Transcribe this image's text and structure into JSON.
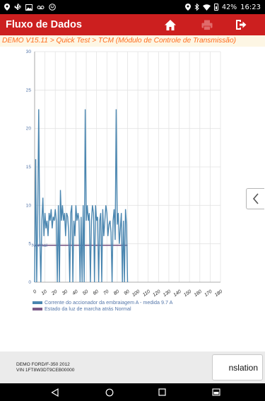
{
  "status_bar": {
    "battery": "42%",
    "time": "16:23"
  },
  "header": {
    "title": "Fluxo de Dados",
    "home_icon": "home-icon",
    "print_icon": "print-icon",
    "exit_icon": "exit-icon"
  },
  "breadcrumb": "DEMO V15.11 > Quick Test > TCM (Módulo de Controle de Transmissão)",
  "colors": {
    "header": "#cc1f1f",
    "breadcrumb_text": "#ff6a1a",
    "series_1": "#4a86b0",
    "series_2": "#7a5a86"
  },
  "chart_data": {
    "type": "line",
    "xlim": [
      0,
      180
    ],
    "ylim": [
      0,
      30
    ],
    "x_ticks": [
      "0",
      "10",
      "20",
      "30",
      "40",
      "50",
      "60",
      "70",
      "80",
      "90",
      "100",
      "110",
      "120",
      "130",
      "140",
      "150",
      "160",
      "170",
      "180"
    ],
    "y_ticks": [
      "0",
      "5",
      "10",
      "15",
      "20",
      "25",
      "30"
    ],
    "grid": true,
    "legend_position": "bottom-left",
    "annotation": "Normal",
    "series": [
      {
        "name": "Corrente do accionador da embraiagem A - medida 9.7 A",
        "x": [
          0,
          1,
          2,
          3,
          4,
          5,
          6,
          7,
          8,
          9,
          10,
          11,
          12,
          13,
          14,
          15,
          16,
          17,
          18,
          19,
          20,
          21,
          22,
          23,
          24,
          25,
          26,
          27,
          28,
          29,
          30,
          31,
          32,
          33,
          34,
          35,
          36,
          37,
          38,
          39,
          40,
          41,
          42,
          43,
          44,
          45,
          46,
          47,
          48,
          49,
          50,
          51,
          52,
          53,
          54,
          55,
          56,
          57,
          58,
          59,
          60,
          61,
          62,
          63,
          64,
          65,
          66,
          67,
          68,
          69,
          70,
          71,
          72,
          73,
          74,
          75,
          76,
          77,
          78,
          79,
          80,
          81,
          82,
          83,
          84,
          85,
          86,
          87,
          88,
          89,
          90
        ],
        "y": [
          0,
          16,
          0,
          9,
          22.5,
          6,
          0,
          8,
          11,
          6,
          9,
          7,
          8,
          6,
          9,
          8,
          9.5,
          7,
          8.5,
          8,
          9.5,
          8,
          0,
          10,
          0,
          12,
          8,
          10,
          8,
          9,
          6,
          9,
          8.5,
          6.5,
          0,
          9,
          10,
          0,
          8,
          6,
          10,
          8,
          9,
          8,
          0,
          8.5,
          0,
          10,
          0,
          22.5,
          8,
          10,
          8,
          9,
          0,
          8,
          10,
          9,
          0,
          10,
          8,
          8.5,
          0,
          8,
          9,
          0,
          9.5,
          6,
          8,
          10,
          9,
          6,
          7.5,
          8,
          6.5,
          0,
          8,
          9.5,
          5.5,
          22.5,
          7.5,
          9,
          5,
          7,
          9,
          0,
          8,
          0,
          9.5,
          7.5,
          0
        ]
      },
      {
        "name": "Estado da luz de marcha atrás Normal",
        "x": [
          0,
          90
        ],
        "y": [
          4.8,
          4.8
        ]
      }
    ]
  },
  "side_tab_icon": "chevron-left-icon",
  "footer": {
    "vehicle_line1": "DEMO FORD/F-350 2012",
    "vehicle_line2": "VIN 1FT8W3DT9CEB00000",
    "translate_button": "nslation"
  },
  "nav": {
    "back_icon": "back-icon",
    "home_icon": "home-circle-icon",
    "recents_icon": "recents-icon",
    "screenshot_icon": "screenshot-icon"
  }
}
